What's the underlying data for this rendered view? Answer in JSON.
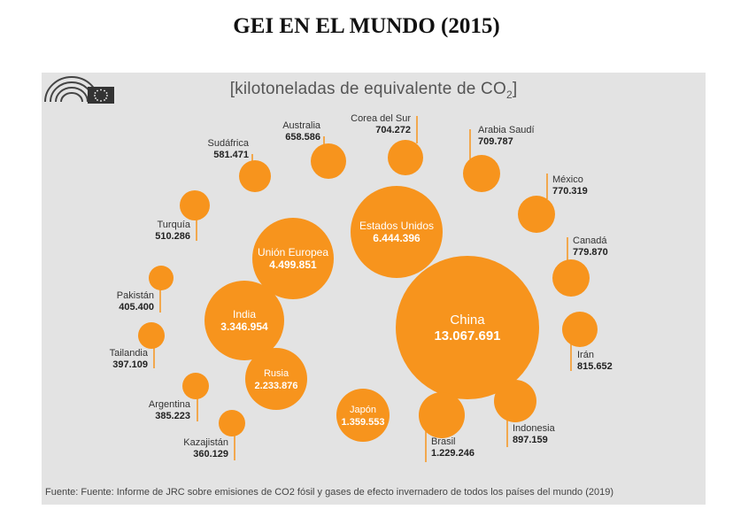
{
  "title": "GEI EN EL MUNDO (2015)",
  "unit_prefix": "[kilotoneladas de equivalente de CO",
  "unit_sub": "2",
  "unit_suffix": "]",
  "source": "Fuente: Fuente: Informe de JRC sobre emisiones de CO2 fósil y gases de efecto invernadero de todos los países del mundo (2019)",
  "colors": {
    "bubble": "#f7941d",
    "leader": "#f7941d",
    "panel": "#e3e3e3",
    "label_inside": "#ffffff",
    "label_outside": "#333333"
  },
  "logo_icon": "european-parliament-logo-icon",
  "chart_data": {
    "type": "bubble",
    "value_unit": "kilotoneladas de equivalente de CO2",
    "points": [
      {
        "name": "China",
        "label": "13.067.691",
        "value": 13067691
      },
      {
        "name": "Estados Unidos",
        "label": "6.444.396",
        "value": 6444396
      },
      {
        "name": "Unión Europea",
        "label": "4.499.851",
        "value": 4499851
      },
      {
        "name": "India",
        "label": "3.346.954",
        "value": 3346954
      },
      {
        "name": "Rusia",
        "label": "2.233.876",
        "value": 2233876
      },
      {
        "name": "Japón",
        "label": "1.359.553",
        "value": 1359553
      },
      {
        "name": "Brasil",
        "label": "1.229.246",
        "value": 1229246
      },
      {
        "name": "Indonesia",
        "label": "897.159",
        "value": 897159
      },
      {
        "name": "Irán",
        "label": "815.652",
        "value": 815652
      },
      {
        "name": "Canadá",
        "label": "779.870",
        "value": 779870
      },
      {
        "name": "México",
        "label": "770.319",
        "value": 770319
      },
      {
        "name": "Arabia Saudí",
        "label": "709.787",
        "value": 709787
      },
      {
        "name": "Corea del Sur",
        "label": "704.272",
        "value": 704272
      },
      {
        "name": "Australia",
        "label": "658.586",
        "value": 658586
      },
      {
        "name": "Sudáfrica",
        "label": "581.471",
        "value": 581471
      },
      {
        "name": "Turquía",
        "label": "510.286",
        "value": 510286
      },
      {
        "name": "Pakistán",
        "label": "405.400",
        "value": 405400
      },
      {
        "name": "Tailandia",
        "label": "397.109",
        "value": 397109
      },
      {
        "name": "Argentina",
        "label": "385.223",
        "value": 385223
      },
      {
        "name": "Kazajistán",
        "label": "360.129",
        "value": 360129
      }
    ]
  }
}
